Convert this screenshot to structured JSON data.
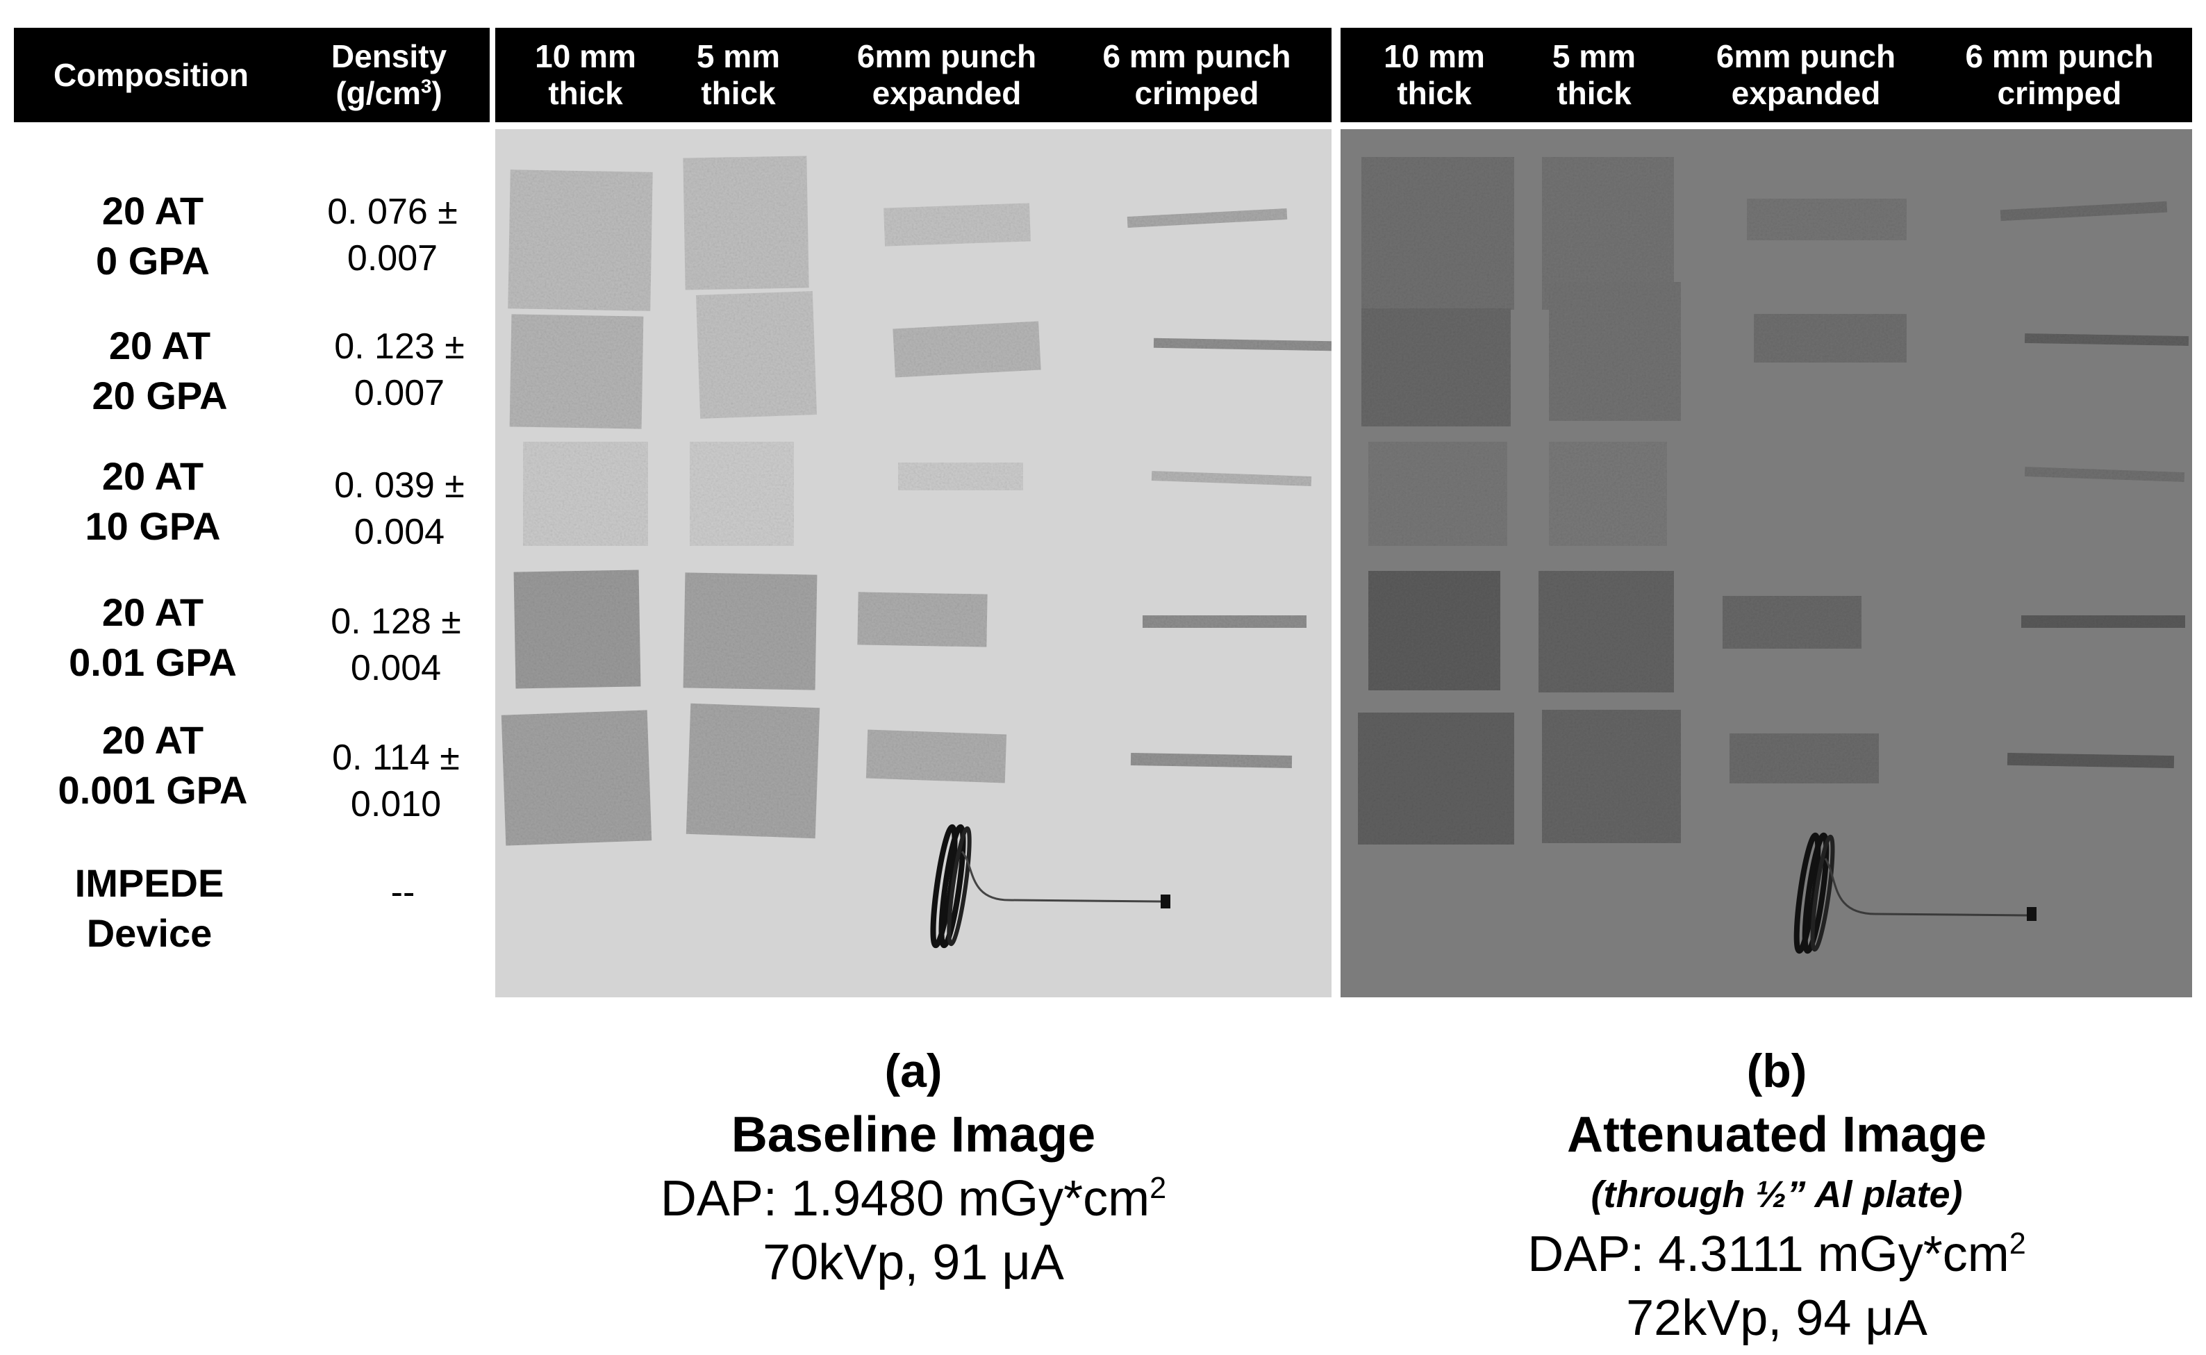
{
  "table_header": {
    "composition": "Composition",
    "density_line1": "Density",
    "density_line2": "(g/cm",
    "density_sup": "3",
    "density_close": ")",
    "panel_a_columns": [
      {
        "line1": "10 mm",
        "line2": "thick"
      },
      {
        "line1": "5 mm",
        "line2": "thick"
      },
      {
        "line1": "6mm punch",
        "line2": "expanded"
      },
      {
        "line1": "6 mm punch",
        "line2": "crimped"
      }
    ],
    "panel_b_columns": [
      {
        "line1": "10 mm",
        "line2": "thick"
      },
      {
        "line1": "5 mm",
        "line2": "thick"
      },
      {
        "line1": "6mm punch",
        "line2": "expanded"
      },
      {
        "line1": "6 mm punch",
        "line2": "crimped"
      }
    ]
  },
  "rows": [
    {
      "line1": "20 AT",
      "line2": "0 GPA",
      "density1": "0. 076 ±",
      "density2": "0.007"
    },
    {
      "line1": "20 AT",
      "line2": "20 GPA",
      "density1": "0. 123 ±",
      "density2": "0.007"
    },
    {
      "line1": "20 AT",
      "line2": "10 GPA",
      "density1": "0. 039 ±",
      "density2": "0.004"
    },
    {
      "line1": "20 AT",
      "line2": "0.01 GPA",
      "density1": "0. 128 ±",
      "density2": "0.004"
    },
    {
      "line1": "20 AT",
      "line2": "0.001 GPA",
      "density1": "0. 114 ±",
      "density2": "0.010"
    },
    {
      "line1": "IMPEDE",
      "line2": "Device",
      "density1": "--",
      "density2": ""
    }
  ],
  "captions": {
    "a": {
      "letter": "(a)",
      "title": "Baseline Image",
      "dap_prefix": "DAP: 1.9480 mGy*cm",
      "dap_sup": "2",
      "params": "70kVp, 91 μA"
    },
    "b": {
      "letter": "(b)",
      "title": "Attenuated Image",
      "subtitle": "(through ½” Al plate)",
      "dap_prefix": "DAP: 4.3111 mGy*cm",
      "dap_sup": "2",
      "params": "72kVp, 94 μA"
    }
  },
  "colors": {
    "header_bg": "#000000",
    "header_text": "#ffffff",
    "panel_a_bg": "#d3d3d3",
    "panel_b_bg": "#7a7a7a"
  }
}
